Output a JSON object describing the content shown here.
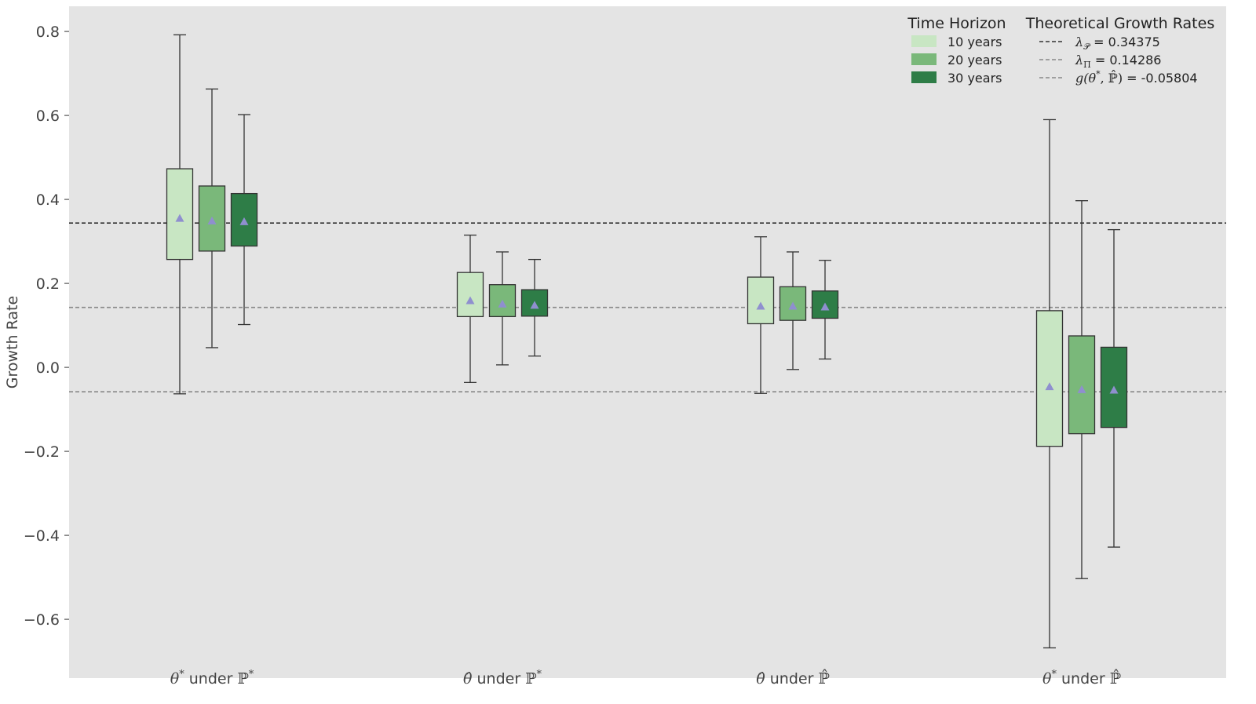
{
  "chart_data": {
    "type": "box",
    "ylabel": "Growth Rate",
    "ylim": [
      -0.74,
      0.86
    ],
    "yticks": [
      {
        "value": 0.8,
        "label": "0.8"
      },
      {
        "value": 0.6,
        "label": "0.6"
      },
      {
        "value": 0.4,
        "label": "0.4"
      },
      {
        "value": 0.2,
        "label": "0.2"
      },
      {
        "value": 0.0,
        "label": "0.0"
      },
      {
        "value": -0.2,
        "label": "−0.2"
      },
      {
        "value": -0.4,
        "label": "−0.4"
      },
      {
        "value": -0.6,
        "label": "−0.6"
      }
    ],
    "grid": false,
    "categories": [
      {
        "theta": "θ",
        "theta_hat": false,
        "theta_sup": "*",
        "under": "under",
        "prob": "ℙ",
        "prob_hat": false,
        "prob_sup": "*"
      },
      {
        "theta": "θ",
        "theta_hat": true,
        "theta_sup": "",
        "under": "under",
        "prob": "ℙ",
        "prob_hat": false,
        "prob_sup": "*"
      },
      {
        "theta": "θ",
        "theta_hat": true,
        "theta_sup": "",
        "under": "under",
        "prob": "ℙ",
        "prob_hat": true,
        "prob_sup": ""
      },
      {
        "theta": "θ",
        "theta_hat": false,
        "theta_sup": "*",
        "under": "under",
        "prob": "ℙ",
        "prob_hat": true,
        "prob_sup": ""
      }
    ],
    "series": [
      {
        "name": "10 years",
        "color": "#c8e6c3",
        "boxes": [
          {
            "whislo": -0.063,
            "q1": 0.257,
            "q3": 0.473,
            "whishi": 0.792,
            "mean": 0.356
          },
          {
            "whislo": -0.036,
            "q1": 0.121,
            "q3": 0.226,
            "whishi": 0.315,
            "mean": 0.16
          },
          {
            "whislo": -0.062,
            "q1": 0.104,
            "q3": 0.215,
            "whishi": 0.311,
            "mean": 0.147
          },
          {
            "whislo": -0.668,
            "q1": -0.188,
            "q3": 0.135,
            "whishi": 0.59,
            "mean": -0.045
          }
        ]
      },
      {
        "name": "20 years",
        "color": "#7ab87a",
        "boxes": [
          {
            "whislo": 0.047,
            "q1": 0.277,
            "q3": 0.432,
            "whishi": 0.663,
            "mean": 0.35
          },
          {
            "whislo": 0.006,
            "q1": 0.121,
            "q3": 0.197,
            "whishi": 0.275,
            "mean": 0.152
          },
          {
            "whislo": -0.005,
            "q1": 0.112,
            "q3": 0.192,
            "whishi": 0.275,
            "mean": 0.147
          },
          {
            "whislo": -0.503,
            "q1": -0.158,
            "q3": 0.075,
            "whishi": 0.397,
            "mean": -0.052
          }
        ]
      },
      {
        "name": "30 years",
        "color": "#2e7d47",
        "boxes": [
          {
            "whislo": 0.102,
            "q1": 0.289,
            "q3": 0.414,
            "whishi": 0.602,
            "mean": 0.348
          },
          {
            "whislo": 0.027,
            "q1": 0.122,
            "q3": 0.185,
            "whishi": 0.257,
            "mean": 0.149
          },
          {
            "whislo": 0.02,
            "q1": 0.117,
            "q3": 0.182,
            "whishi": 0.255,
            "mean": 0.145
          },
          {
            "whislo": -0.428,
            "q1": -0.143,
            "q3": 0.048,
            "whishi": 0.328,
            "mean": -0.053
          }
        ]
      }
    ],
    "mean_marker_color": "#8f8fcf",
    "reference_lines": [
      {
        "value": 0.34375,
        "color": "#333333",
        "symbol": "λ",
        "subscript": "𝒫",
        "text": "= 0.34375"
      },
      {
        "value": 0.14286,
        "color": "#888888",
        "symbol": "λ",
        "subscript": "Π",
        "text": "= 0.14286"
      },
      {
        "value": -0.05804,
        "color": "#888888",
        "symbol": "g(θ",
        "sup": "*",
        "mid": ", ",
        "prob": "ℙ",
        "close": ")",
        "text": "= -0.05804"
      }
    ],
    "legends": {
      "time_title": "Time Horizon",
      "rates_title": "Theoretical Growth Rates",
      "position": "top-right"
    },
    "plot_background": "#e4e4e4"
  }
}
